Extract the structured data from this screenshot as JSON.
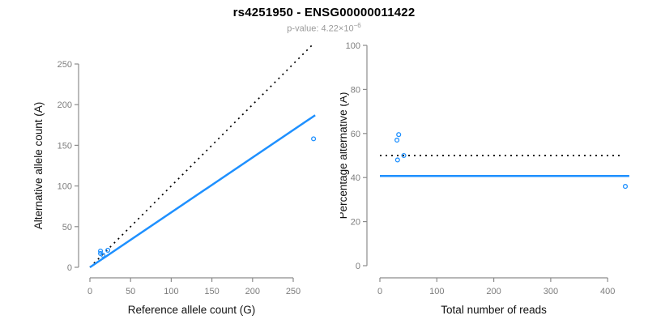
{
  "header": {
    "title": "rs4251950 - ENSG00000011422",
    "subtitle_prefix": "p-value: 4.22×10",
    "subtitle_exponent": "−6"
  },
  "colors": {
    "accent_blue": "#1E90FF",
    "axis_gray": "#8C8C8C",
    "tick_text_gray": "#7D7D7D",
    "black": "#000000",
    "subtitle_gray": "#9A9A9A",
    "background": "#FFFFFF"
  },
  "chart_data": [
    {
      "type": "scatter",
      "title": "",
      "xlabel": "Reference allele count (G)",
      "ylabel": "Alternative allele count (A)",
      "xticks": [
        0,
        50,
        100,
        150,
        200,
        250
      ],
      "yticks": [
        0,
        50,
        100,
        150,
        200,
        250
      ],
      "xlim": [
        0,
        280
      ],
      "ylim": [
        0,
        275
      ],
      "grid": false,
      "legend": "none",
      "points": [
        [
          13,
          20
        ],
        [
          13,
          17
        ],
        [
          22,
          21
        ],
        [
          16,
          15
        ],
        [
          275,
          158
        ]
      ],
      "lines": [
        {
          "name": "identity",
          "x1": 0,
          "y1": 0,
          "x2": 273,
          "y2": 273,
          "style": "dotted",
          "color": "black",
          "width": 1.7
        },
        {
          "name": "fit",
          "x1": 0,
          "y1": 0,
          "x2": 277,
          "y2": 187,
          "style": "solid",
          "color": "blue",
          "width": 2.5
        }
      ]
    },
    {
      "type": "scatter",
      "title": "",
      "xlabel": "Total number of reads",
      "ylabel": "Percentage alternative (A)",
      "xticks": [
        0,
        100,
        200,
        300,
        400
      ],
      "yticks": [
        0,
        20,
        40,
        60,
        80,
        100
      ],
      "xlim": [
        0,
        445
      ],
      "ylim": [
        0,
        100
      ],
      "grid": false,
      "legend": "none",
      "points": [
        [
          33,
          59.5
        ],
        [
          30,
          57
        ],
        [
          42,
          50
        ],
        [
          31,
          48
        ],
        [
          431,
          36
        ]
      ],
      "lines": [
        {
          "name": "fifty-percent",
          "x1": 0,
          "y1": 50,
          "x2": 426,
          "y2": 50,
          "style": "dotted",
          "color": "black",
          "width": 1.7
        },
        {
          "name": "fit",
          "x1": 0,
          "y1": 40.7,
          "x2": 438,
          "y2": 40.7,
          "style": "solid",
          "color": "blue",
          "width": 2.5
        }
      ]
    }
  ]
}
